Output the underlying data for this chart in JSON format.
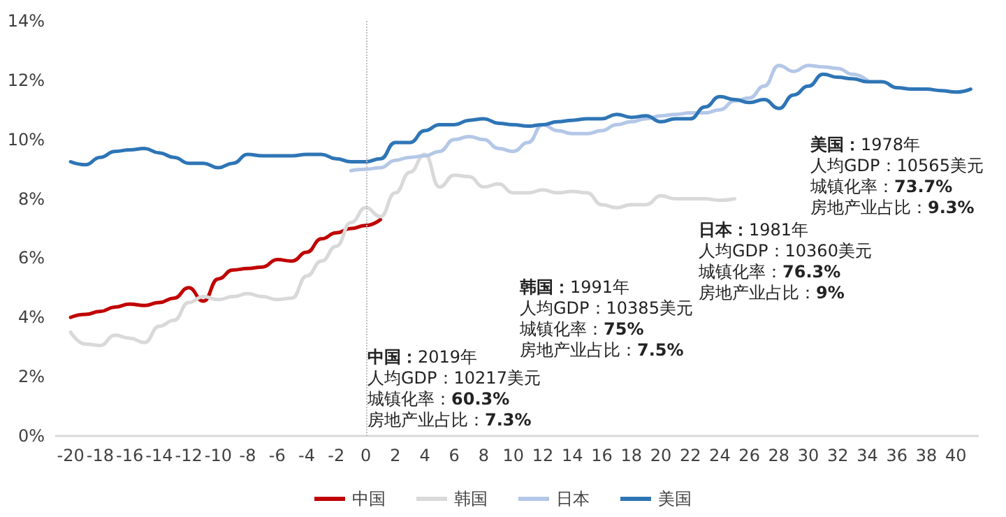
{
  "chart_data": {
    "type": "line",
    "xlim": [
      -21,
      41.5
    ],
    "xticks": [
      -20,
      -18,
      -16,
      -14,
      -12,
      -10,
      -8,
      -6,
      -4,
      -2,
      0,
      2,
      4,
      6,
      8,
      10,
      12,
      14,
      16,
      18,
      20,
      22,
      24,
      26,
      28,
      30,
      32,
      34,
      36,
      38,
      40
    ],
    "ylim": [
      0,
      14
    ],
    "yticks": [
      {
        "value": 0,
        "label": "0%"
      },
      {
        "value": 2,
        "label": "2%"
      },
      {
        "value": 4,
        "label": "4%"
      },
      {
        "value": 6,
        "label": "6%"
      },
      {
        "value": 8,
        "label": "8%"
      },
      {
        "value": 10,
        "label": "10%"
      },
      {
        "value": 12,
        "label": "12%"
      },
      {
        "value": 14,
        "label": "14%"
      }
    ],
    "grid": false,
    "legend": "bottom",
    "marker": "none",
    "line_style": "solid",
    "series": [
      {
        "name": "中国",
        "color": "#c00000",
        "x": [
          -20,
          -19,
          -18,
          -17,
          -16,
          -15,
          -14,
          -13,
          -12,
          -11,
          -10,
          -9,
          -8,
          -7,
          -6,
          -5,
          -4,
          -3,
          -2,
          -1,
          0,
          1
        ],
        "values": [
          4.0,
          4.1,
          4.2,
          4.35,
          4.45,
          4.4,
          4.5,
          4.65,
          5.0,
          4.55,
          5.3,
          5.6,
          5.65,
          5.7,
          5.95,
          5.9,
          6.2,
          6.65,
          6.85,
          7.0,
          7.1,
          7.3
        ]
      },
      {
        "name": "韩国",
        "color": "#d9d9d9",
        "x": [
          -20,
          -19,
          -18,
          -17,
          -16,
          -15,
          -14,
          -13,
          -12,
          -11,
          -10,
          -9,
          -8,
          -7,
          -6,
          -5,
          -4,
          -3,
          -2,
          -1,
          0,
          1,
          2,
          3,
          4,
          5,
          6,
          7,
          8,
          9,
          10,
          11,
          12,
          13,
          14,
          15,
          16,
          17,
          18,
          19,
          20,
          21,
          22,
          23,
          24,
          25
        ],
        "values": [
          3.5,
          3.1,
          3.05,
          3.4,
          3.3,
          3.15,
          3.7,
          3.9,
          4.5,
          4.7,
          4.6,
          4.7,
          4.8,
          4.7,
          4.6,
          4.65,
          5.4,
          5.9,
          6.4,
          7.2,
          7.7,
          7.4,
          8.2,
          8.9,
          9.5,
          8.4,
          8.8,
          8.75,
          8.4,
          8.5,
          8.2,
          8.2,
          8.3,
          8.2,
          8.25,
          8.2,
          7.8,
          7.7,
          7.8,
          7.8,
          8.1,
          8.0,
          8.0,
          8.0,
          7.95,
          8.0
        ]
      },
      {
        "name": "日本",
        "color": "#b4c7e7",
        "x": [
          -1,
          0,
          1,
          2,
          3,
          4,
          5,
          6,
          7,
          8,
          9,
          10,
          11,
          12,
          13,
          14,
          15,
          16,
          17,
          18,
          19,
          20,
          21,
          22,
          23,
          24,
          25,
          26,
          27,
          28,
          29,
          30,
          31,
          32,
          33,
          34
        ],
        "values": [
          8.95,
          9.0,
          9.05,
          9.3,
          9.4,
          9.45,
          9.6,
          10.0,
          10.1,
          10.0,
          9.7,
          9.6,
          9.9,
          10.5,
          10.3,
          10.2,
          10.2,
          10.3,
          10.5,
          10.6,
          10.7,
          10.8,
          10.85,
          10.9,
          10.9,
          11.0,
          11.3,
          11.4,
          11.8,
          12.5,
          12.3,
          12.5,
          12.45,
          12.4,
          12.2,
          12.0
        ]
      },
      {
        "name": "美国",
        "color": "#2e75b6",
        "x": [
          -20,
          -19,
          -18,
          -17,
          -16,
          -15,
          -14,
          -13,
          -12,
          -11,
          -10,
          -9,
          -8,
          -7,
          -6,
          -5,
          -4,
          -3,
          -2,
          -1,
          0,
          1,
          2,
          3,
          4,
          5,
          6,
          7,
          8,
          9,
          10,
          11,
          12,
          13,
          14,
          15,
          16,
          17,
          18,
          19,
          20,
          21,
          22,
          23,
          24,
          25,
          26,
          27,
          28,
          29,
          30,
          31,
          32,
          33,
          34,
          35,
          36,
          37,
          38,
          39,
          40,
          41
        ],
        "values": [
          9.25,
          9.15,
          9.4,
          9.6,
          9.65,
          9.7,
          9.55,
          9.4,
          9.2,
          9.2,
          9.05,
          9.2,
          9.5,
          9.45,
          9.45,
          9.45,
          9.5,
          9.5,
          9.35,
          9.25,
          9.25,
          9.35,
          9.9,
          9.9,
          10.3,
          10.5,
          10.5,
          10.65,
          10.7,
          10.55,
          10.5,
          10.45,
          10.5,
          10.6,
          10.65,
          10.7,
          10.7,
          10.85,
          10.75,
          10.8,
          10.6,
          10.7,
          10.7,
          11.1,
          11.45,
          11.35,
          11.25,
          11.35,
          11.05,
          11.5,
          11.8,
          12.2,
          12.1,
          12.05,
          11.95,
          11.95,
          11.75,
          11.7,
          11.7,
          11.65,
          11.6,
          11.7
        ]
      }
    ],
    "ref_lines": [
      {
        "axis": "x",
        "value": 0,
        "color": "#bfbfbf",
        "line_style": "dotted"
      }
    ],
    "annotations": [
      "中国：2019年",
      "人均GDP：10217美元",
      "城镇化率：60.3%",
      "房地产业占比：7.3%",
      "韩国：1991年",
      "人均GDP：10385美元",
      "城镇化率：75%",
      "房地产业占比：7.5%",
      "日本：1981年",
      "人均GDP：10360美元",
      "城镇化率：76.3%",
      "房地产业占比：9%",
      "美国：1978年",
      "人均GDP：10565美元",
      "城镇化率：73.7%",
      "房地产业占比：9.3%"
    ]
  }
}
